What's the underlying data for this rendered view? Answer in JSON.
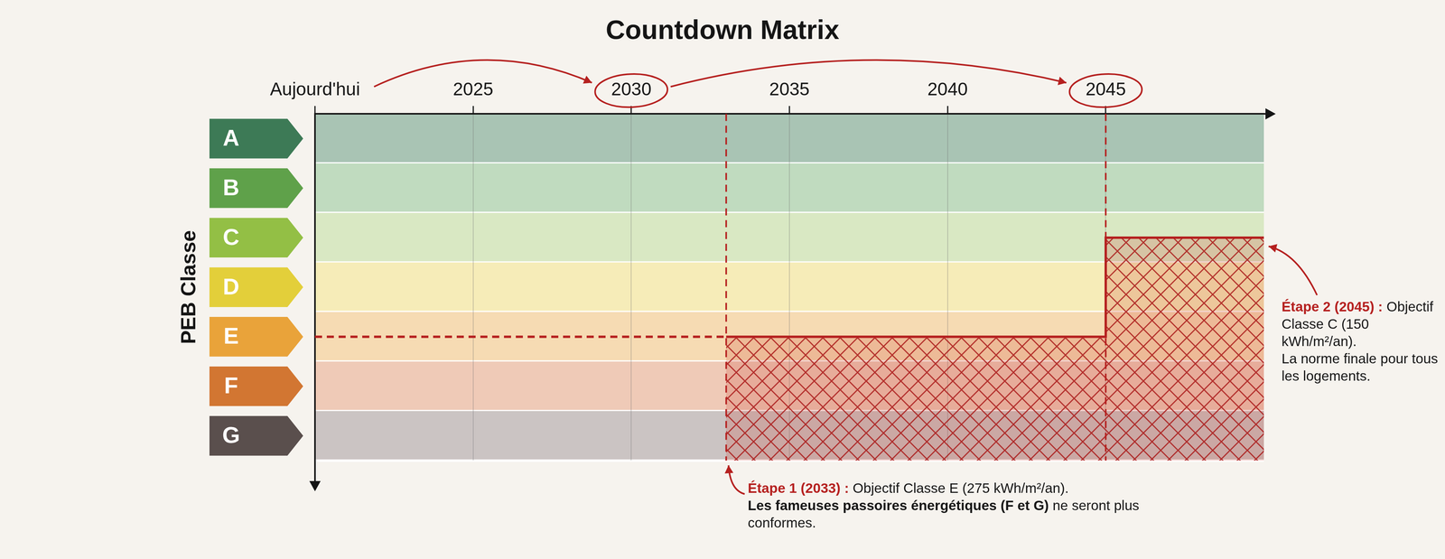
{
  "chart_data": {
    "type": "line",
    "title": "Countdown Matrix",
    "y_label": "PEB Classe",
    "xlim": [
      2020,
      2050
    ],
    "xticks": [
      {
        "value": 2020,
        "label": "Aujourd'hui"
      },
      2025,
      2030,
      2035,
      2040,
      2045
    ],
    "y_categories": [
      "A",
      "B",
      "C",
      "D",
      "E",
      "F",
      "G"
    ],
    "grid": true,
    "series": [
      {
        "type": "step",
        "color": "#b5201f",
        "line_style": "solid",
        "x": [
          2033,
          2045,
          2050
        ],
        "values": [
          "E",
          "C",
          "C"
        ]
      },
      {
        "type": "line",
        "color": "#b5201f",
        "line_style": "dashed",
        "x": [
          2020,
          2033
        ],
        "values": [
          "E",
          "E"
        ]
      }
    ],
    "vertical_lines": [
      2033,
      2045
    ],
    "highlighted_ticks": [
      2030,
      2045
    ],
    "annotations": [
      {
        "x": 2033,
        "heading": "Étape 1 (2033) :",
        "text": "Objectif Classe E (275 kWh/m²/an).",
        "emphasis": "Les fameuses passoires énergétiques (F et G)",
        "tail": "ne seront plus conformes."
      },
      {
        "x": 2045,
        "heading": "Étape 2 (2045) :",
        "text": "Objectif Classe C (150 kWh/m²/an).",
        "tail": "La norme finale pour tous les logements."
      }
    ]
  }
}
